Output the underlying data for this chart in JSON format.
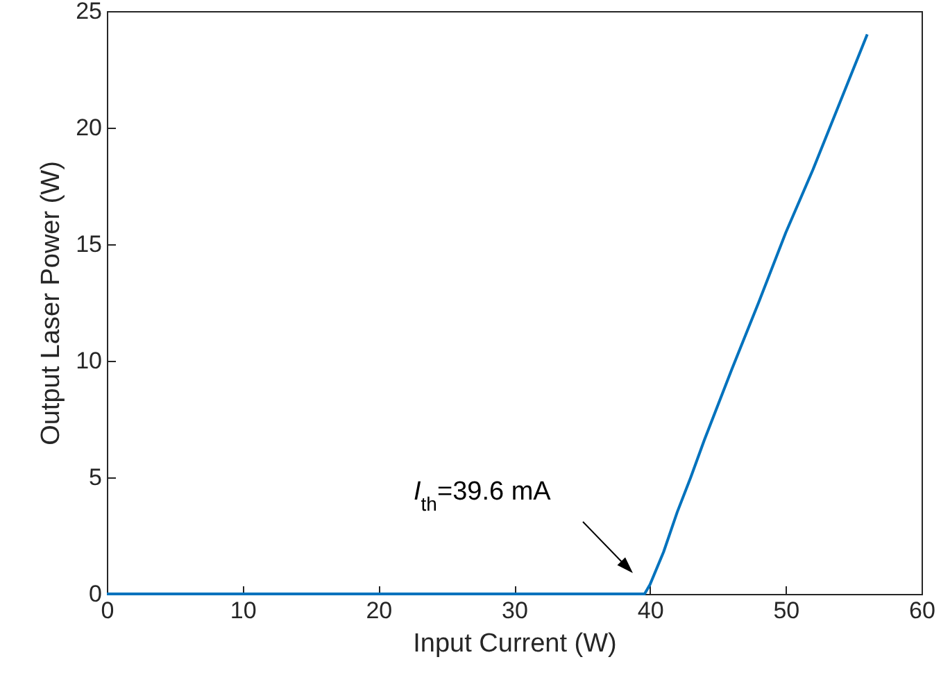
{
  "chart_data": {
    "type": "line",
    "xlabel": "Input Current (W)",
    "ylabel": "Output Laser Power (W)",
    "x": [
      0,
      10,
      20,
      30,
      39.6,
      40,
      41,
      42,
      43,
      44,
      46,
      48,
      50,
      52,
      54,
      56
    ],
    "series": [
      {
        "color": "#0072bd",
        "values": [
          0,
          0,
          0,
          0,
          0,
          0.4,
          1.8,
          3.5,
          5.0,
          6.6,
          9.6,
          12.5,
          15.5,
          18.2,
          21.1,
          24.0
        ]
      }
    ],
    "xlim": [
      0,
      60
    ],
    "xticks": [
      0,
      10,
      20,
      30,
      40,
      50,
      60
    ],
    "ylim": [
      0,
      25
    ],
    "yticks": [
      0,
      5,
      10,
      15,
      20,
      25
    ],
    "marker": "none",
    "line_style": "solid",
    "annotations": [
      "I$_{th}$=39.6 mA"
    ]
  }
}
